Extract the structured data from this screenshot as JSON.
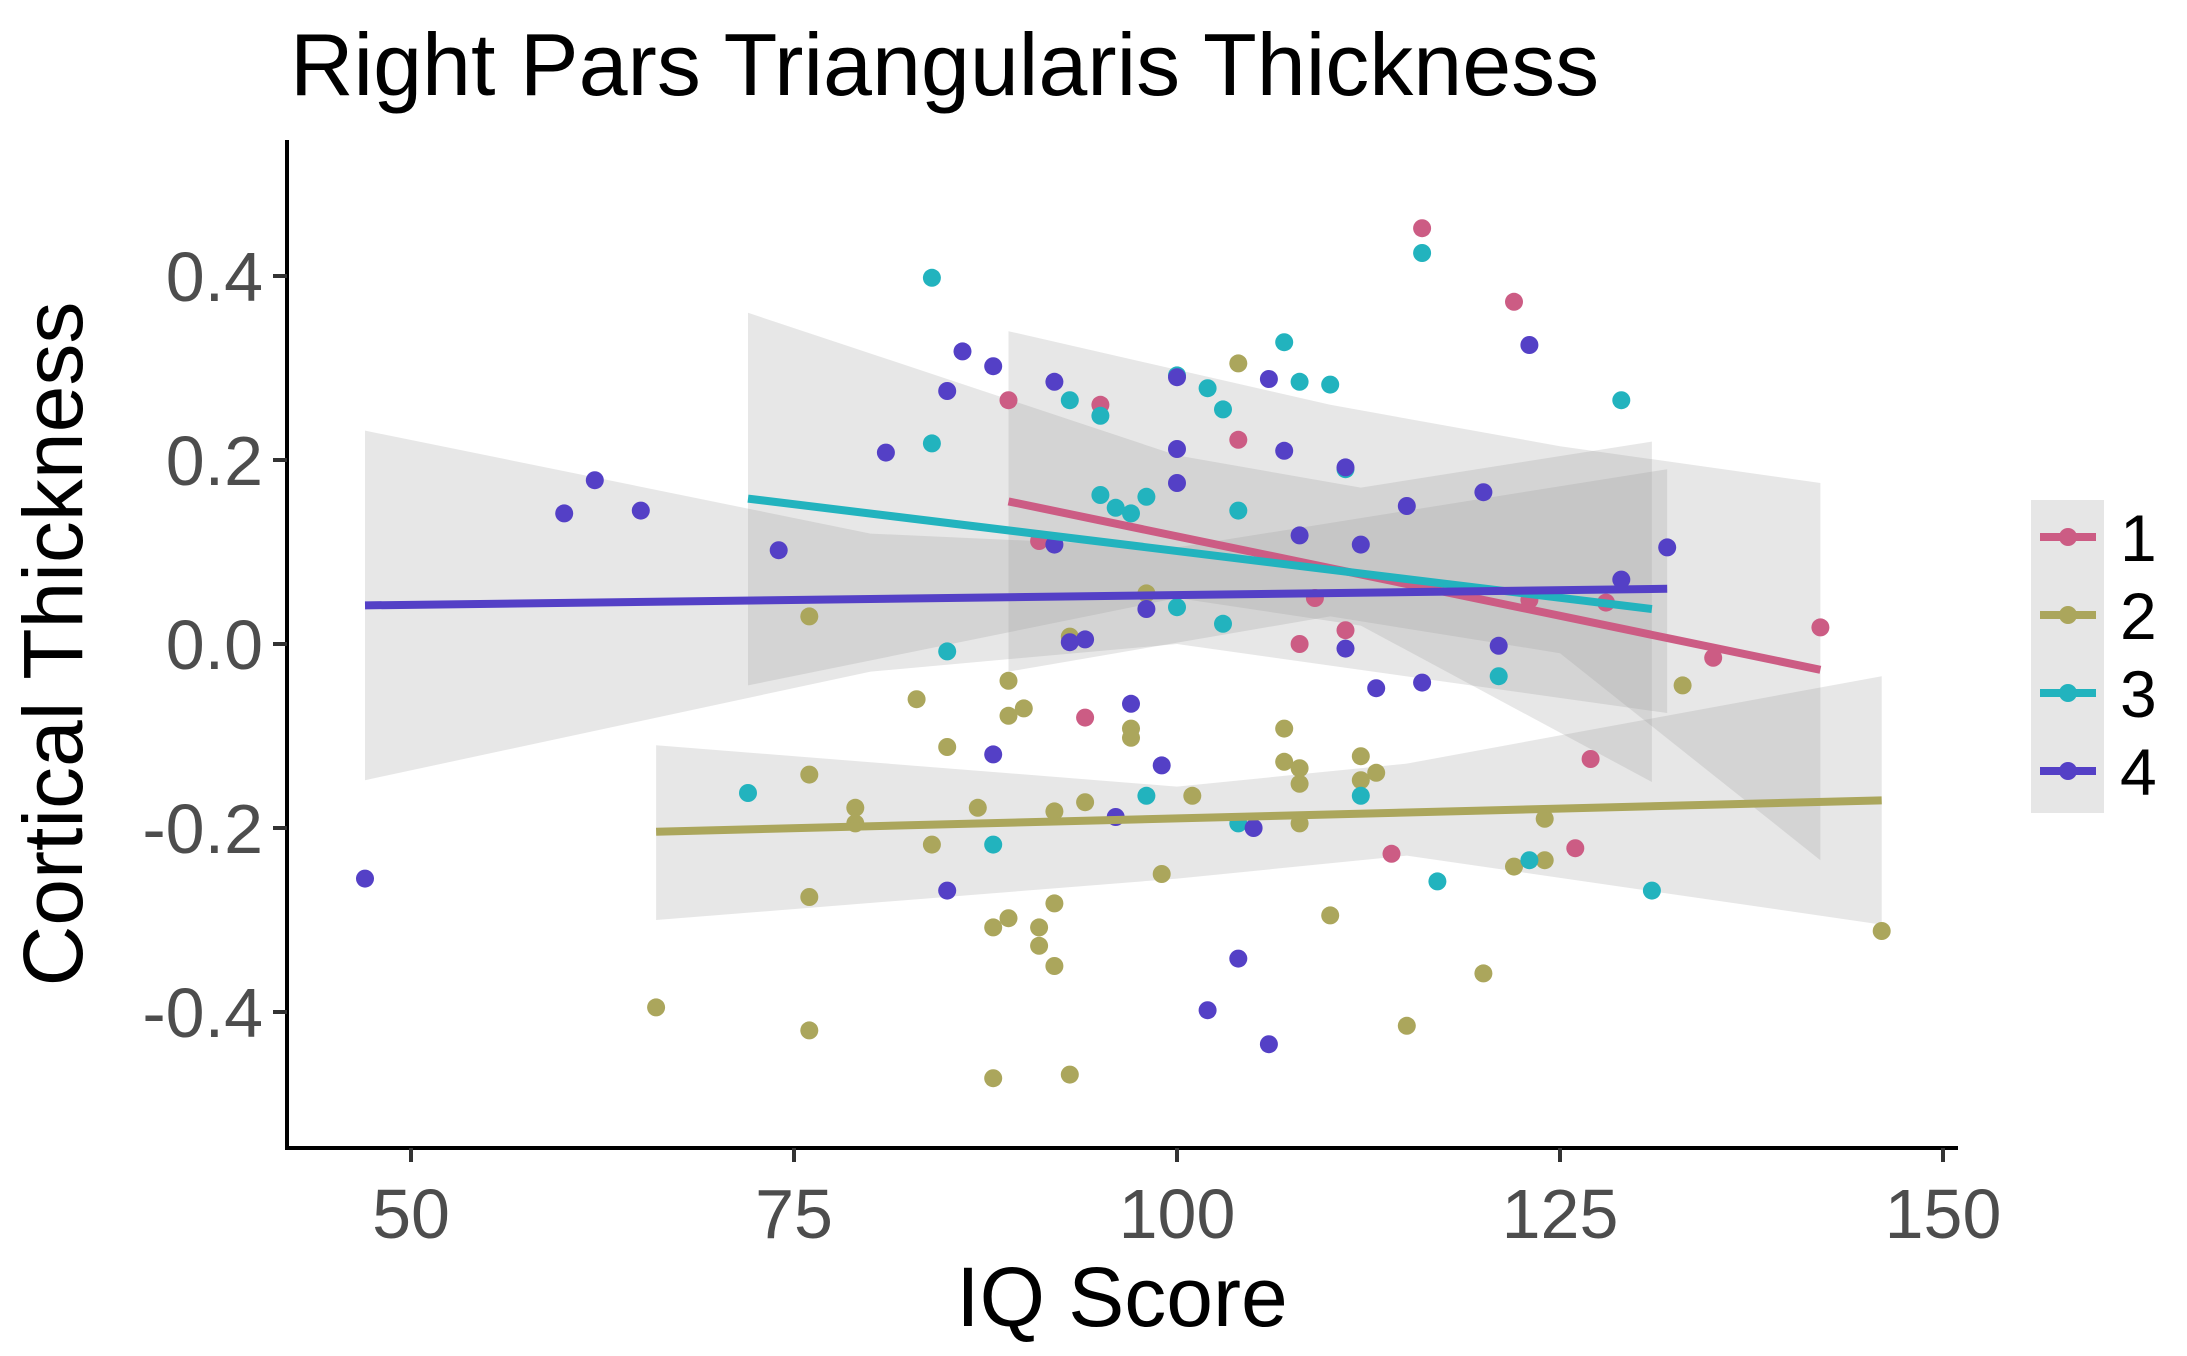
{
  "chart_data": {
    "type": "scatter",
    "title": "Right Pars Triangularis Thickness",
    "xlabel": "IQ Score",
    "ylabel": "Cortical Thickness",
    "xlim": [
      43,
      151
    ],
    "ylim": [
      -0.55,
      0.55
    ],
    "x_ticks": [
      50,
      75,
      100,
      125,
      150
    ],
    "x_tick_labels": [
      "50",
      "75",
      "100",
      "125",
      "150"
    ],
    "y_ticks": [
      -0.4,
      -0.2,
      0.0,
      0.2,
      0.4
    ],
    "y_tick_labels": [
      "-0.4",
      "-0.2",
      "0.0",
      "0.2",
      "0.4"
    ],
    "grid": false,
    "legend_position": "right",
    "legend_title": "",
    "series": [
      {
        "name": "1",
        "color": "#CC5C84",
        "points": [
          [
            89,
            0.265
          ],
          [
            95,
            0.26
          ],
          [
            94,
            -0.08
          ],
          [
            91,
            0.112
          ],
          [
            104,
            0.222
          ],
          [
            109,
            0.05
          ],
          [
            108,
            0.0
          ],
          [
            111,
            0.015
          ],
          [
            116,
            0.452
          ],
          [
            122,
            0.372
          ],
          [
            123,
            0.048
          ],
          [
            127,
            -0.125
          ],
          [
            126,
            -0.222
          ],
          [
            114,
            -0.228
          ],
          [
            128,
            0.045
          ],
          [
            135,
            -0.015
          ],
          [
            142,
            0.018
          ]
        ],
        "fit": {
          "x": [
            89,
            142
          ],
          "y": [
            0.155,
            -0.028
          ]
        },
        "ci": {
          "upper": [
            0.34,
            0.26,
            0.215,
            0.175
          ],
          "lower": [
            -0.03,
            0.03,
            -0.01,
            -0.235
          ],
          "x": [
            89,
            110,
            125,
            142
          ]
        }
      },
      {
        "name": "2",
        "color": "#ABA65C",
        "points": [
          [
            66,
            -0.395
          ],
          [
            76,
            0.03
          ],
          [
            76,
            -0.142
          ],
          [
            76,
            -0.275
          ],
          [
            76,
            -0.42
          ],
          [
            79,
            -0.178
          ],
          [
            79,
            -0.195
          ],
          [
            83,
            -0.06
          ],
          [
            84,
            -0.218
          ],
          [
            85,
            -0.112
          ],
          [
            87,
            -0.178
          ],
          [
            88,
            -0.472
          ],
          [
            88,
            -0.308
          ],
          [
            89,
            -0.04
          ],
          [
            89,
            -0.078
          ],
          [
            89,
            -0.298
          ],
          [
            90,
            -0.07
          ],
          [
            91,
            -0.308
          ],
          [
            91,
            -0.328
          ],
          [
            92,
            -0.182
          ],
          [
            92,
            -0.282
          ],
          [
            92,
            -0.35
          ],
          [
            93,
            0.008
          ],
          [
            93,
            -0.468
          ],
          [
            94,
            -0.172
          ],
          [
            97,
            -0.092
          ],
          [
            97,
            -0.102
          ],
          [
            98,
            0.055
          ],
          [
            99,
            -0.25
          ],
          [
            101,
            -0.165
          ],
          [
            104,
            0.305
          ],
          [
            107,
            -0.092
          ],
          [
            107,
            -0.128
          ],
          [
            108,
            -0.135
          ],
          [
            108,
            -0.152
          ],
          [
            108,
            -0.195
          ],
          [
            110,
            -0.295
          ],
          [
            112,
            -0.122
          ],
          [
            112,
            -0.148
          ],
          [
            113,
            -0.14
          ],
          [
            115,
            -0.415
          ],
          [
            120,
            -0.358
          ],
          [
            122,
            -0.242
          ],
          [
            124,
            -0.19
          ],
          [
            124,
            -0.235
          ],
          [
            133,
            -0.045
          ],
          [
            146,
            -0.312
          ]
        ],
        "fit": {
          "x": [
            66,
            146
          ],
          "y": [
            -0.204,
            -0.17
          ]
        },
        "ci": {
          "upper": [
            -0.11,
            -0.155,
            -0.13,
            -0.035
          ],
          "lower": [
            -0.3,
            -0.255,
            -0.23,
            -0.305
          ],
          "x": [
            66,
            100,
            115,
            146
          ]
        }
      },
      {
        "name": "3",
        "color": "#22B3BE",
        "points": [
          [
            72,
            -0.162
          ],
          [
            84,
            0.398
          ],
          [
            84,
            0.218
          ],
          [
            85,
            -0.008
          ],
          [
            88,
            -0.218
          ],
          [
            93,
            0.265
          ],
          [
            95,
            0.248
          ],
          [
            95,
            0.162
          ],
          [
            96,
            0.148
          ],
          [
            97,
            0.142
          ],
          [
            98,
            0.16
          ],
          [
            98,
            -0.165
          ],
          [
            100,
            0.292
          ],
          [
            100,
            0.04
          ],
          [
            102,
            0.278
          ],
          [
            103,
            0.255
          ],
          [
            103,
            0.022
          ],
          [
            104,
            0.145
          ],
          [
            104,
            -0.195
          ],
          [
            107,
            0.328
          ],
          [
            108,
            0.285
          ],
          [
            110,
            0.282
          ],
          [
            111,
            0.19
          ],
          [
            112,
            -0.165
          ],
          [
            116,
            0.425
          ],
          [
            117,
            -0.258
          ],
          [
            121,
            -0.035
          ],
          [
            123,
            -0.235
          ],
          [
            129,
            0.265
          ],
          [
            131,
            -0.268
          ]
        ],
        "fit": {
          "x": [
            72,
            131
          ],
          "y": [
            0.158,
            0.038
          ]
        },
        "ci": {
          "upper": [
            0.36,
            0.205,
            0.17,
            0.22
          ],
          "lower": [
            -0.045,
            0.05,
            0.02,
            -0.15
          ],
          "x": [
            72,
            100,
            112,
            131
          ]
        }
      },
      {
        "name": "4",
        "color": "#5440C6",
        "points": [
          [
            47,
            -0.255
          ],
          [
            60,
            0.142
          ],
          [
            62,
            0.178
          ],
          [
            65,
            0.145
          ],
          [
            74,
            0.102
          ],
          [
            81,
            0.208
          ],
          [
            85,
            0.275
          ],
          [
            85,
            -0.268
          ],
          [
            86,
            0.318
          ],
          [
            88,
            0.302
          ],
          [
            88,
            -0.12
          ],
          [
            92,
            0.285
          ],
          [
            92,
            0.108
          ],
          [
            93,
            0.002
          ],
          [
            94,
            0.005
          ],
          [
            96,
            -0.188
          ],
          [
            97,
            -0.065
          ],
          [
            98,
            0.038
          ],
          [
            99,
            -0.132
          ],
          [
            100,
            0.29
          ],
          [
            100,
            0.212
          ],
          [
            100,
            0.175
          ],
          [
            102,
            -0.398
          ],
          [
            104,
            -0.342
          ],
          [
            105,
            -0.2
          ],
          [
            106,
            0.288
          ],
          [
            106,
            -0.435
          ],
          [
            107,
            0.21
          ],
          [
            108,
            0.118
          ],
          [
            111,
            0.192
          ],
          [
            111,
            -0.005
          ],
          [
            112,
            0.108
          ],
          [
            113,
            -0.048
          ],
          [
            115,
            0.15
          ],
          [
            116,
            -0.042
          ],
          [
            120,
            0.165
          ],
          [
            121,
            -0.002
          ],
          [
            123,
            0.325
          ],
          [
            129,
            0.07
          ],
          [
            132,
            0.105
          ]
        ],
        "fit": {
          "x": [
            47,
            132
          ],
          "y": [
            0.042,
            0.06
          ]
        },
        "ci": {
          "upper": [
            0.232,
            0.12,
            0.105,
            0.19
          ],
          "lower": [
            -0.148,
            -0.03,
            0.0,
            -0.075
          ],
          "x": [
            47,
            80,
            100,
            132
          ]
        }
      }
    ]
  }
}
